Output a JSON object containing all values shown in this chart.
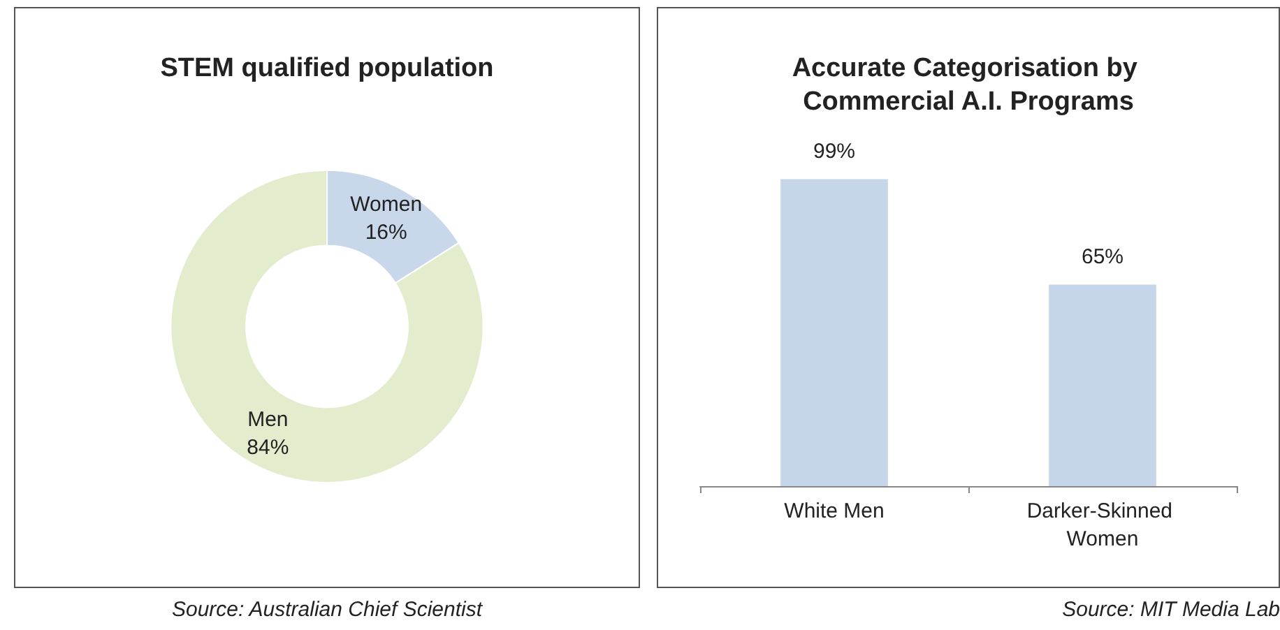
{
  "chart_data": [
    {
      "type": "donut",
      "title": "STEM qualified population",
      "categories": [
        "Women",
        "Men"
      ],
      "values": [
        16,
        84
      ],
      "colors": [
        "#c8d7ea",
        "#e4ecce"
      ],
      "value_labels": [
        "16%",
        "84%"
      ],
      "legend": false,
      "annotations": [
        "Source: Australian Chief Scientist"
      ]
    },
    {
      "type": "bar",
      "title": "Accurate Categorisation by Commercial A.I. Programs",
      "categories": [
        "White Men",
        "Darker-Skinned Women"
      ],
      "values": [
        99,
        65
      ],
      "color": "#c5d6ea",
      "value_labels": [
        "99%",
        "65%"
      ],
      "legend": false,
      "grid": false,
      "tick_labels": "x",
      "annotations": [
        "Source: MIT Media Lab"
      ]
    }
  ]
}
